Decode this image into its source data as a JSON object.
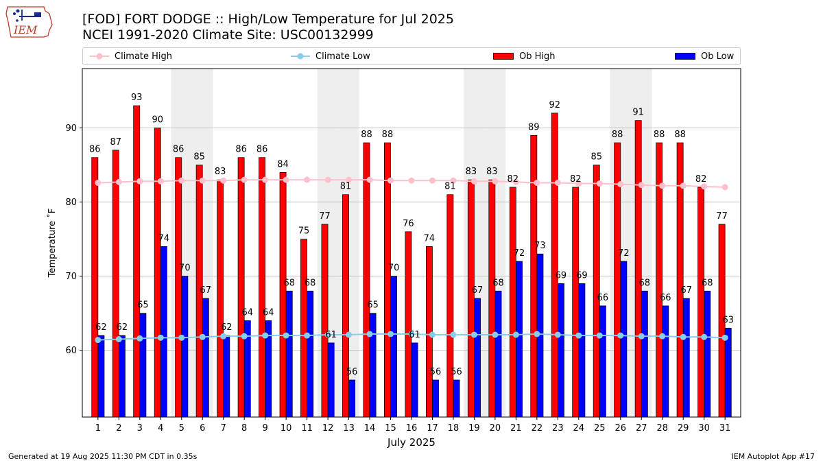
{
  "header": {
    "title_line1": "[FOD] FORT DODGE :: High/Low Temperature for Jul 2025",
    "title_line2": "NCEI 1991-2020 Climate Site: USC00132999",
    "logo_text": "IEM"
  },
  "footer": {
    "left": "Generated at 19 Aug 2025 11:30 PM CDT in 0.35s",
    "right": "IEM Autoplot App #17"
  },
  "colors": {
    "climate_high": "#ffc0cb",
    "climate_low": "#87ceeb",
    "ob_high": "#ff0000",
    "ob_low": "#0000ff",
    "weekend_band": "#eeeeee",
    "grid": "#b0b0b0"
  },
  "chart_data": {
    "type": "bar",
    "xlabel": "July 2025",
    "ylabel": "Temperature $^\\circ$F",
    "ylabel_display": "Temperature ˚F",
    "ylim": [
      51,
      98
    ],
    "yticks": [
      60,
      70,
      80,
      90
    ],
    "grid": "horizontal",
    "legend_position": "top",
    "categories": [
      "1",
      "2",
      "3",
      "4",
      "5",
      "6",
      "7",
      "8",
      "9",
      "10",
      "11",
      "12",
      "13",
      "14",
      "15",
      "16",
      "17",
      "18",
      "19",
      "20",
      "21",
      "22",
      "23",
      "24",
      "25",
      "26",
      "27",
      "28",
      "29",
      "30",
      "31"
    ],
    "weekend_days": [
      5,
      6,
      12,
      13,
      19,
      20,
      26,
      27
    ],
    "series": [
      {
        "name": "Ob High",
        "kind": "bar",
        "values": [
          86,
          87,
          93,
          90,
          86,
          85,
          83,
          86,
          86,
          84,
          75,
          77,
          81,
          88,
          88,
          76,
          74,
          81,
          83,
          83,
          82,
          89,
          92,
          82,
          85,
          88,
          91,
          88,
          88,
          82,
          77
        ]
      },
      {
        "name": "Ob Low",
        "kind": "bar",
        "values": [
          62,
          62,
          65,
          74,
          70,
          67,
          62,
          64,
          64,
          68,
          68,
          61,
          56,
          65,
          70,
          61,
          56,
          56,
          67,
          68,
          72,
          73,
          69,
          69,
          66,
          72,
          68,
          66,
          67,
          68,
          63
        ]
      },
      {
        "name": "Climate High",
        "kind": "line",
        "values": [
          82.6,
          82.7,
          82.8,
          82.8,
          82.9,
          82.9,
          82.9,
          83.0,
          83.0,
          83.0,
          83.0,
          83.0,
          83.0,
          83.0,
          82.9,
          82.9,
          82.9,
          82.9,
          82.8,
          82.8,
          82.7,
          82.6,
          82.6,
          82.5,
          82.5,
          82.4,
          82.3,
          82.2,
          82.2,
          82.1,
          82.0
        ]
      },
      {
        "name": "Climate Low",
        "kind": "line",
        "values": [
          61.4,
          61.5,
          61.6,
          61.7,
          61.7,
          61.8,
          61.9,
          61.9,
          62.0,
          62.0,
          62.0,
          62.1,
          62.1,
          62.2,
          62.2,
          62.2,
          62.1,
          62.1,
          62.1,
          62.1,
          62.1,
          62.2,
          62.1,
          62.0,
          62.0,
          62.0,
          61.9,
          61.9,
          61.8,
          61.8,
          61.7
        ]
      }
    ]
  }
}
